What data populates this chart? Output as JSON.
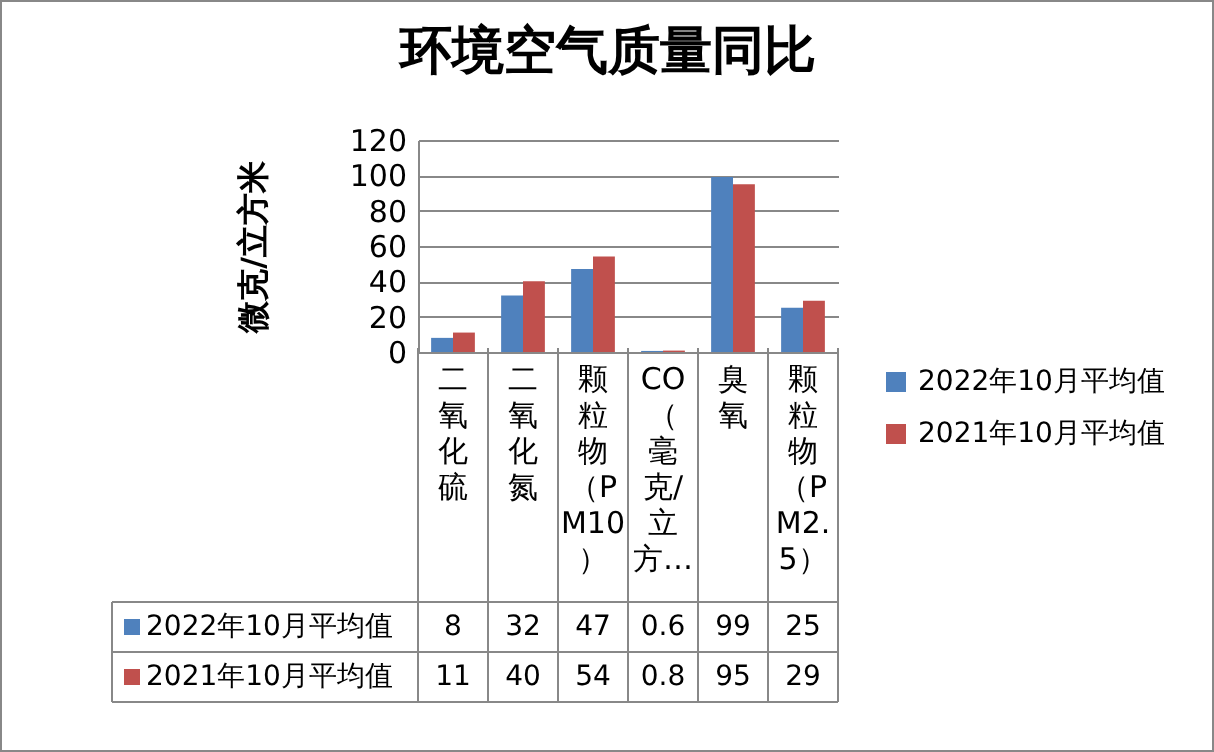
{
  "chart_data": {
    "type": "bar",
    "title": "环境空气质量同比",
    "ylabel": "微克/立方米",
    "categories": [
      "二氧化硫",
      "二氧化氮",
      "颗粒物（PM10）",
      "CO（毫克/立方…",
      "臭氧",
      "颗粒物（PM2.5）"
    ],
    "series": [
      {
        "name": "2022年10月平均值",
        "color": "#4f81bd",
        "values": [
          8,
          32,
          47,
          0.6,
          99,
          25
        ]
      },
      {
        "name": "2021年10月平均值",
        "color": "#c0504d",
        "values": [
          11,
          40,
          54,
          0.8,
          95,
          29
        ]
      }
    ],
    "ylim": [
      0,
      120
    ],
    "yticks": [
      0,
      20,
      40,
      60,
      80,
      100,
      120
    ],
    "grid": "y",
    "legend": "right",
    "data_labels": true
  }
}
